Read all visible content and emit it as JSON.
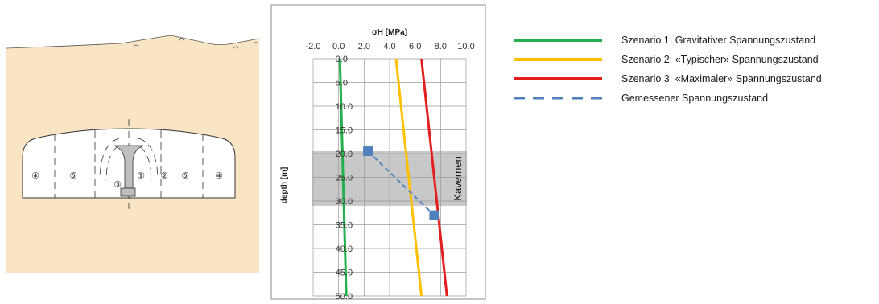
{
  "scene": {
    "zone_labels": [
      "④",
      "⑤",
      "③",
      "①",
      "②",
      "⑤",
      "④"
    ]
  },
  "colors": {
    "ground_fill": "#f9e5c3",
    "zone_band": "#c8c8c8",
    "scenario1": "#22b14c",
    "scenario2": "#ffc000",
    "scenario3": "#e41d1d",
    "measured": "#4f81bd"
  },
  "chart_data": {
    "type": "line",
    "title": "",
    "xlabel": "σH [MPa]",
    "ylabel": "depth [m]",
    "xlim": [
      -2.0,
      10.0
    ],
    "ylim": [
      0,
      50
    ],
    "y_inverted": true,
    "x_ticks": [
      "-2.0",
      "0.0",
      "2.0",
      "4.0",
      "6.0",
      "8.0",
      "10.0"
    ],
    "y_ticks": [
      "0.0",
      "5.0",
      "10.0",
      "15.0",
      "20.0",
      "25.0",
      "30.0",
      "35.0",
      "40.0",
      "45.0",
      "50.0"
    ],
    "x_axis_position": "top",
    "grid": true,
    "legend_position": "right",
    "zone": {
      "label": "Kavernen",
      "from": 19.5,
      "to": 31
    },
    "series": [
      {
        "name": "Szenario 1: Gravitativer Spannungszustand",
        "style": "solid",
        "color": "#22b14c",
        "x": [
          0.1,
          0.6
        ],
        "y": [
          0,
          50
        ]
      },
      {
        "name": "Szenario 2: «Typischer» Spannungszustand",
        "style": "solid",
        "color": "#ffc000",
        "x": [
          4.5,
          6.5
        ],
        "y": [
          0,
          50
        ]
      },
      {
        "name": "Szenario 3: «Maximaler» Spannungszustand",
        "style": "solid",
        "color": "#e41d1d",
        "x": [
          6.5,
          8.5
        ],
        "y": [
          0,
          50
        ]
      },
      {
        "name": "Gemessener Spannungszustand",
        "style": "dashed",
        "color": "#4f81bd",
        "x": [
          2.3,
          7.5
        ],
        "y": [
          19.5,
          33
        ]
      }
    ]
  }
}
